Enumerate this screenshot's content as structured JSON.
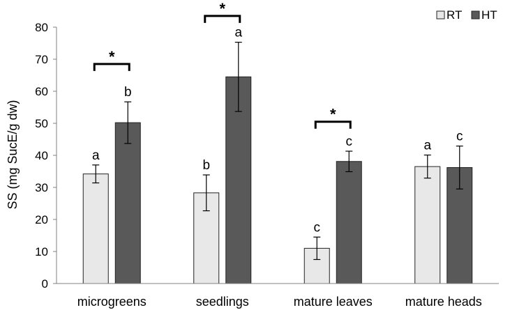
{
  "chart_data": {
    "type": "bar",
    "ylabel": "SS (mg SucE/g dw)",
    "xlabel": "",
    "ylim": [
      0,
      80
    ],
    "yticks": [
      0,
      10,
      20,
      30,
      40,
      50,
      60,
      70,
      80
    ],
    "categories": [
      "microgreens",
      "seedlings",
      "mature leaves",
      "mature heads"
    ],
    "legend_position": "top-right",
    "series": [
      {
        "name": "RT",
        "color": "#e8e8e8",
        "values": [
          34.2,
          28.3,
          11.0,
          36.5
        ],
        "errors": [
          2.8,
          5.6,
          3.5,
          3.6
        ],
        "letters": [
          "a",
          "b",
          "c",
          "a"
        ]
      },
      {
        "name": "HT",
        "color": "#595959",
        "values": [
          50.2,
          64.5,
          38.1,
          36.2
        ],
        "errors": [
          6.5,
          10.8,
          3.2,
          6.7
        ],
        "letters": [
          "b",
          "a",
          "c",
          "c"
        ]
      }
    ],
    "significance": [
      {
        "category": "microgreens",
        "label": "*",
        "y": 68.5
      },
      {
        "category": "seedlings",
        "label": "*",
        "y": 83.5
      },
      {
        "category": "mature leaves",
        "label": "*",
        "y": 50.5
      }
    ]
  }
}
